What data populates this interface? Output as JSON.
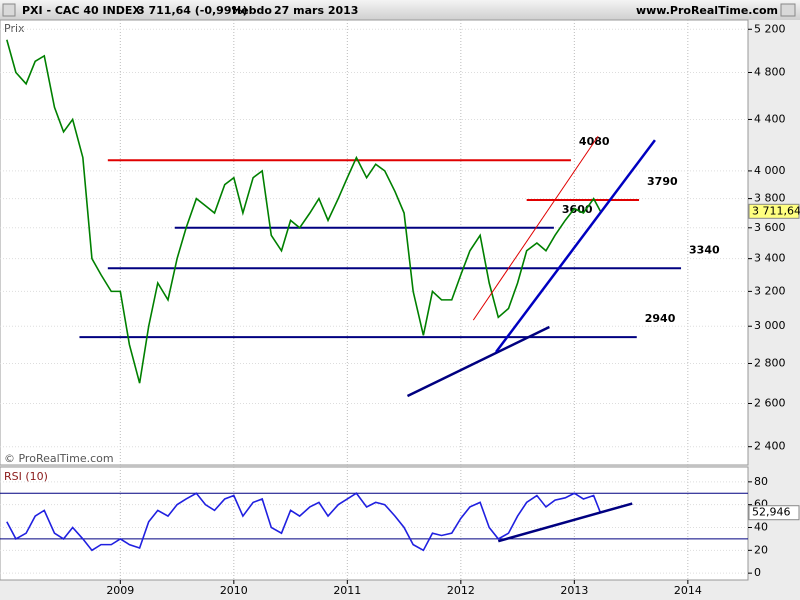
{
  "header": {
    "symbol": "PXI - CAC 40 INDEX",
    "quote": "3 711,64 (-0,99%)",
    "period": "Hebdo",
    "date": "27 mars 2013",
    "site": "www.ProRealTime.com"
  },
  "chart_data": [
    {
      "type": "line",
      "y_label": "Prix",
      "credit": "© ProRealTime.com",
      "log_scale": true,
      "grid": true,
      "xlim": [
        2007.94,
        2014.53
      ],
      "ylim": [
        2320,
        5290
      ],
      "yticks": [
        {
          "value": 2400,
          "label": "2 400"
        },
        {
          "value": 2600,
          "label": "2 600"
        },
        {
          "value": 2800,
          "label": "2 800"
        },
        {
          "value": 3000,
          "label": "3 000"
        },
        {
          "value": 3200,
          "label": "3 200"
        },
        {
          "value": 3400,
          "label": "3 400"
        },
        {
          "value": 3600,
          "label": "3 600"
        },
        {
          "value": 3800,
          "label": "3 800"
        },
        {
          "value": 4000,
          "label": "4 000"
        },
        {
          "value": 4400,
          "label": "4 400"
        },
        {
          "value": 4800,
          "label": "4 800"
        },
        {
          "value": 5200,
          "label": "5 200"
        }
      ],
      "x": [
        2008.0,
        2008.08,
        2008.17,
        2008.25,
        2008.33,
        2008.42,
        2008.5,
        2008.58,
        2008.67,
        2008.75,
        2008.83,
        2008.92,
        2009.0,
        2009.08,
        2009.17,
        2009.25,
        2009.33,
        2009.42,
        2009.5,
        2009.58,
        2009.67,
        2009.75,
        2009.83,
        2009.92,
        2010.0,
        2010.08,
        2010.17,
        2010.25,
        2010.33,
        2010.42,
        2010.5,
        2010.58,
        2010.67,
        2010.75,
        2010.83,
        2010.92,
        2011.0,
        2011.08,
        2011.17,
        2011.25,
        2011.33,
        2011.42,
        2011.5,
        2011.58,
        2011.67,
        2011.75,
        2011.83,
        2011.92,
        2012.0,
        2012.08,
        2012.17,
        2012.25,
        2012.33,
        2012.42,
        2012.5,
        2012.58,
        2012.67,
        2012.75,
        2012.83,
        2012.92,
        2013.0,
        2013.08,
        2013.17,
        2013.23
      ],
      "series": [
        {
          "color": "#008000",
          "values": [
            5100,
            4800,
            4700,
            4900,
            4950,
            4500,
            4300,
            4400,
            4100,
            3400,
            3300,
            3200,
            3200,
            2900,
            2700,
            3000,
            3250,
            3150,
            3400,
            3600,
            3800,
            3750,
            3700,
            3900,
            3950,
            3700,
            3950,
            4000,
            3550,
            3450,
            3650,
            3600,
            3700,
            3800,
            3650,
            3800,
            3950,
            4100,
            3950,
            4050,
            4000,
            3850,
            3700,
            3200,
            2950,
            3200,
            3150,
            3150,
            3300,
            3450,
            3550,
            3250,
            3050,
            3100,
            3250,
            3450,
            3500,
            3450,
            3550,
            3650,
            3730,
            3700,
            3800,
            3711.64
          ]
        }
      ],
      "last_label": {
        "value": 3711.64,
        "label": "3 711,64"
      },
      "levels": [
        {
          "value": 4080,
          "x": [
            2008.89,
            2012.97
          ],
          "color": "#e00000"
        },
        {
          "value": 3790,
          "x": [
            2012.58,
            2013.57
          ],
          "color": "#e00000"
        },
        {
          "value": 3600,
          "x": [
            2009.48,
            2012.82
          ],
          "color": "#000080"
        },
        {
          "value": 3340,
          "x": [
            2008.89,
            2013.94
          ],
          "color": "#000080"
        },
        {
          "value": 2940,
          "x": [
            2008.64,
            2013.55
          ],
          "color": "#000080"
        }
      ],
      "trendlines": [
        {
          "x": [
            2011.53,
            2012.78
          ],
          "y": [
            2636,
            2996
          ],
          "color": "#000080"
        },
        {
          "x": [
            2012.31,
            2013.71
          ],
          "y": [
            2860,
            4235
          ],
          "color": "#0000c0"
        },
        {
          "x": [
            2012.11,
            2013.21
          ],
          "y": [
            3034,
            4266
          ],
          "color": "#e00000"
        }
      ]
    },
    {
      "type": "line",
      "title": "RSI (10)",
      "grid": true,
      "xlim": [
        2007.94,
        2014.53
      ],
      "ylim": [
        -6,
        93
      ],
      "xticks": [
        2009,
        2010,
        2011,
        2012,
        2013,
        2014
      ],
      "yticks": [
        0,
        20,
        40,
        60,
        80
      ],
      "reference_lines": [
        30,
        70
      ],
      "x": [
        2008.0,
        2008.08,
        2008.17,
        2008.25,
        2008.33,
        2008.42,
        2008.5,
        2008.58,
        2008.67,
        2008.75,
        2008.83,
        2008.92,
        2009.0,
        2009.08,
        2009.17,
        2009.25,
        2009.33,
        2009.42,
        2009.5,
        2009.58,
        2009.67,
        2009.75,
        2009.83,
        2009.92,
        2010.0,
        2010.08,
        2010.17,
        2010.25,
        2010.33,
        2010.42,
        2010.5,
        2010.58,
        2010.67,
        2010.75,
        2010.83,
        2010.92,
        2011.0,
        2011.08,
        2011.17,
        2011.25,
        2011.33,
        2011.42,
        2011.5,
        2011.58,
        2011.67,
        2011.75,
        2011.83,
        2011.92,
        2012.0,
        2012.08,
        2012.17,
        2012.25,
        2012.33,
        2012.42,
        2012.5,
        2012.58,
        2012.67,
        2012.75,
        2012.83,
        2012.92,
        2013.0,
        2013.08,
        2013.17,
        2013.23
      ],
      "series": [
        {
          "color": "#2020e0",
          "values": [
            45,
            30,
            35,
            50,
            55,
            35,
            30,
            40,
            30,
            20,
            25,
            25,
            30,
            25,
            22,
            45,
            55,
            50,
            60,
            65,
            70,
            60,
            55,
            65,
            68,
            50,
            62,
            65,
            40,
            35,
            55,
            50,
            58,
            62,
            50,
            60,
            65,
            70,
            58,
            62,
            60,
            50,
            40,
            25,
            20,
            35,
            33,
            35,
            48,
            58,
            62,
            40,
            30,
            35,
            50,
            62,
            68,
            58,
            64,
            66,
            70,
            65,
            68,
            52.946
          ]
        }
      ],
      "last_label": {
        "value": 52.946,
        "label": "52,946"
      },
      "trendlines": [
        {
          "x": [
            2012.33,
            2013.51
          ],
          "y": [
            28,
            61
          ],
          "color": "#000080"
        }
      ]
    }
  ]
}
